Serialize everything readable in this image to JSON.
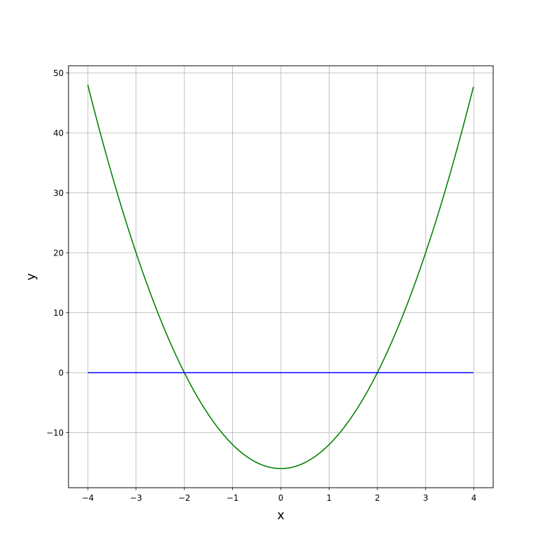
{
  "chart_data": {
    "type": "line",
    "title": "",
    "xlabel": "x",
    "ylabel": "y",
    "xlim": [
      -4.4,
      4.4
    ],
    "ylim": [
      -19.2,
      51.2
    ],
    "grid": true,
    "xticks": [
      -4,
      -3,
      -2,
      -1,
      0,
      1,
      2,
      3,
      4
    ],
    "xtick_labels": [
      "−4",
      "−3",
      "−2",
      "−1",
      "0",
      "1",
      "2",
      "3",
      "4"
    ],
    "yticks": [
      -10,
      0,
      10,
      20,
      30,
      40,
      50
    ],
    "ytick_labels": [
      "−10",
      "0",
      "10",
      "20",
      "30",
      "40",
      "50"
    ],
    "series": [
      {
        "function": "4x^2 - 16",
        "x_range": [
          -4,
          3.99
        ],
        "color": "#008000",
        "sample_points": [
          [
            -4,
            48
          ],
          [
            -3,
            20
          ],
          [
            -2,
            0
          ],
          [
            -1,
            -12
          ],
          [
            0,
            -16
          ],
          [
            1,
            -12
          ],
          [
            2,
            0
          ],
          [
            3,
            20
          ],
          [
            3.99,
            47.68
          ]
        ]
      },
      {
        "function": "0",
        "x_range": [
          -4,
          3.99
        ],
        "color": "#0000ff",
        "sample_points": [
          [
            -4,
            0
          ],
          [
            3.99,
            0
          ]
        ]
      }
    ]
  }
}
